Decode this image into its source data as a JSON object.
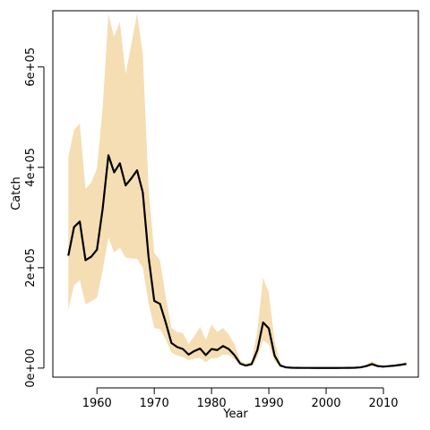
{
  "chart_data": {
    "type": "line",
    "title": "",
    "xlabel": "Year",
    "ylabel": "Catch",
    "xlim": [
      1952.3,
      2016.1
    ],
    "ylim": [
      -18000,
      712000
    ],
    "xticks": [
      1960,
      1970,
      1980,
      1990,
      2000,
      2010
    ],
    "xtick_labels": [
      "1960",
      "1970",
      "1980",
      "1990",
      "2000",
      "2010"
    ],
    "yticks": [
      0,
      200000,
      400000,
      600000
    ],
    "ytick_labels": [
      "0e+00",
      "2e+05",
      "4e+05",
      "6e+05"
    ],
    "grid": false,
    "legend": "none",
    "colors": {
      "band": "#f5deb3",
      "line": "#000000"
    },
    "x": [
      1955,
      1956,
      1957,
      1958,
      1959,
      1960,
      1961,
      1962,
      1963,
      1964,
      1965,
      1966,
      1967,
      1968,
      1969,
      1970,
      1971,
      1972,
      1973,
      1974,
      1975,
      1976,
      1977,
      1978,
      1979,
      1980,
      1981,
      1982,
      1983,
      1984,
      1985,
      1986,
      1987,
      1988,
      1989,
      1990,
      1991,
      1992,
      1993,
      1994,
      1995,
      1996,
      1997,
      1998,
      1999,
      2000,
      2001,
      2002,
      2003,
      2004,
      2005,
      2006,
      2007,
      2008,
      2009,
      2010,
      2011,
      2012,
      2013,
      2014
    ],
    "series": [
      {
        "values": [
          224000,
          281000,
          292000,
          215000,
          222000,
          236000,
          318000,
          424000,
          390000,
          408000,
          364000,
          378000,
          394000,
          350000,
          222000,
          134000,
          128000,
          91000,
          50000,
          42000,
          38000,
          27000,
          34000,
          39000,
          26000,
          38000,
          36000,
          44000,
          38000,
          26000,
          9000,
          5000,
          8000,
          36000,
          91000,
          79000,
          25000,
          5000,
          1500,
          700,
          500,
          400,
          400,
          300,
          300,
          300,
          300,
          300,
          400,
          500,
          700,
          1500,
          4000,
          8000,
          4000,
          3000,
          4000,
          5000,
          6500,
          8500
        ]
      }
    ],
    "band": {
      "upper": [
        420000,
        475000,
        487000,
        357000,
        370000,
        398000,
        520000,
        705000,
        660000,
        690000,
        586000,
        645000,
        707000,
        625000,
        360000,
        230000,
        215000,
        143000,
        80000,
        72000,
        70000,
        48000,
        64000,
        82000,
        56000,
        87000,
        72000,
        80000,
        67000,
        48000,
        15000,
        9000,
        14000,
        75000,
        180000,
        150000,
        55000,
        10000,
        2000,
        1000,
        700,
        600,
        600,
        500,
        500,
        500,
        500,
        500,
        700,
        900,
        1200,
        2500,
        7000,
        14000,
        7500,
        5000,
        6000,
        7500,
        9000,
        12000
      ],
      "lower": [
        115000,
        165000,
        175000,
        127000,
        133000,
        140000,
        195000,
        260000,
        230000,
        240000,
        220000,
        218000,
        218000,
        200000,
        130000,
        80000,
        78000,
        57000,
        31000,
        25000,
        22000,
        16000,
        19000,
        20000,
        12000,
        20000,
        20000,
        27000,
        26000,
        17000,
        6000,
        3000,
        5000,
        22000,
        55000,
        47000,
        14000,
        3000,
        1000,
        400,
        300,
        200,
        200,
        200,
        200,
        200,
        200,
        200,
        200,
        300,
        400,
        800,
        2500,
        5000,
        2500,
        1800,
        2500,
        3000,
        4000,
        5500
      ]
    }
  }
}
